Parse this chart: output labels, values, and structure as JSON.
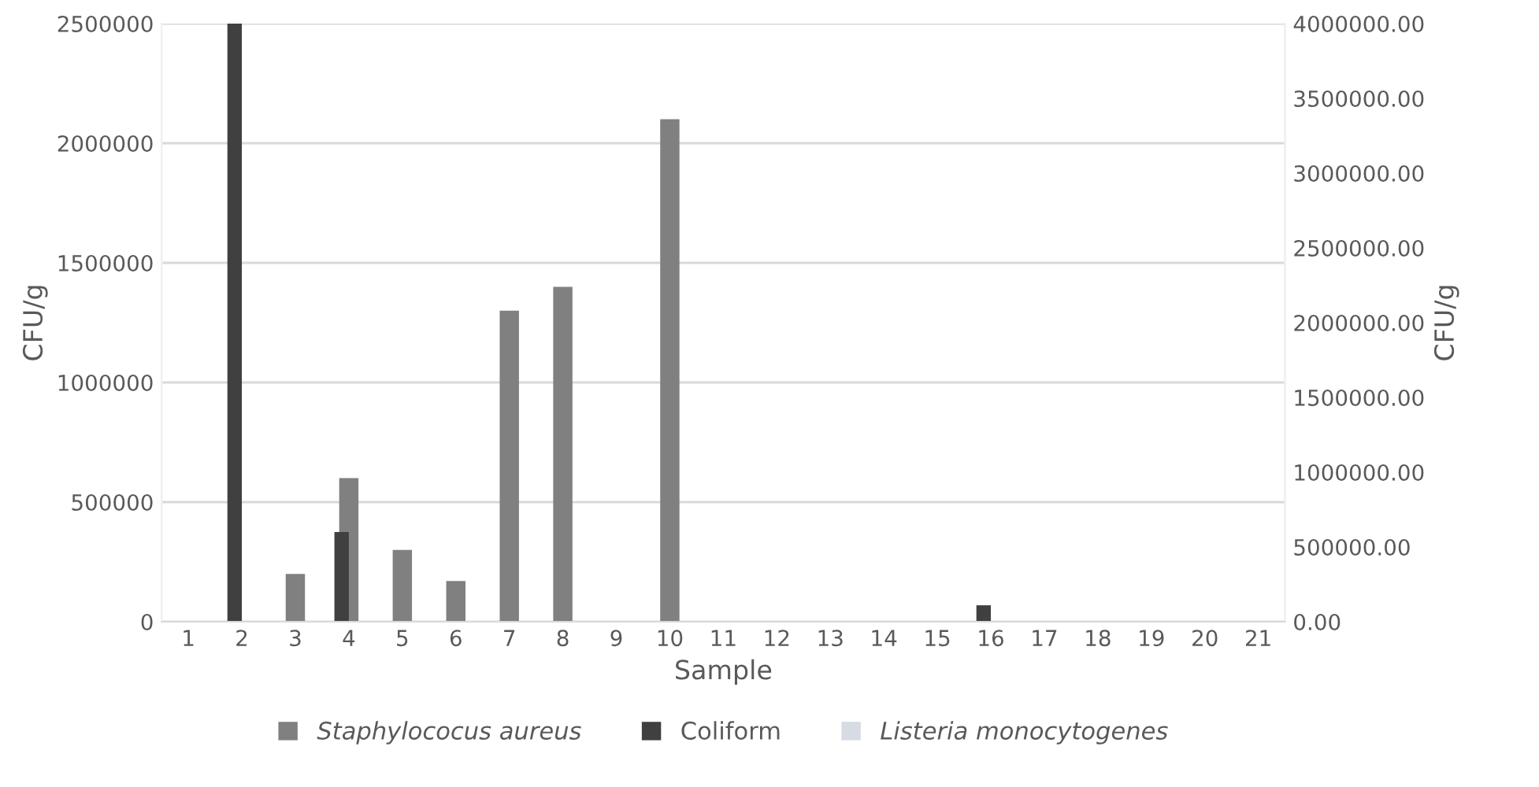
{
  "chart_data": {
    "type": "bar",
    "xlabel": "Sample",
    "ylabel": "CFU/g",
    "y2label": "CFU/g",
    "categories": [
      "1",
      "2",
      "3",
      "4",
      "5",
      "6",
      "7",
      "8",
      "9",
      "10",
      "11",
      "12",
      "13",
      "14",
      "15",
      "16",
      "17",
      "18",
      "19",
      "20",
      "21"
    ],
    "series": [
      {
        "name": "Staphylococus aureus",
        "color": "#808080",
        "values": [
          0,
          0,
          200000,
          600000,
          300000,
          170000,
          1300000,
          1400000,
          0,
          2100000,
          0,
          0,
          0,
          0,
          0,
          0,
          0,
          0,
          0,
          0,
          0
        ]
      },
      {
        "name": "Coliform",
        "color": "#404040",
        "axis": "y2",
        "values": [
          0,
          4000000,
          0,
          600000,
          0,
          0,
          0,
          0,
          0,
          0,
          0,
          0,
          0,
          0,
          0,
          110000,
          0,
          0,
          0,
          0,
          0
        ]
      },
      {
        "name": "Listeria monocytogenes",
        "color": "#d6dbe4",
        "axis": "y2",
        "values": [
          0,
          0,
          0,
          0,
          0,
          0,
          0,
          0,
          0,
          0,
          0,
          0,
          0,
          0,
          0,
          0,
          0,
          0,
          0,
          0,
          0
        ]
      }
    ],
    "ylim": [
      0,
      2500000
    ],
    "yticks": [
      0,
      500000,
      1000000,
      1500000,
      2000000,
      2500000
    ],
    "y2lim": [
      0,
      4000000
    ],
    "y2ticks": [
      {
        "value": 0,
        "label": "0.00"
      },
      {
        "value": 500000,
        "label": "500000.00"
      },
      {
        "value": 1000000,
        "label": "1000000.00"
      },
      {
        "value": 1500000,
        "label": "1500000.00"
      },
      {
        "value": 2000000,
        "label": "2000000.00"
      },
      {
        "value": 2500000,
        "label": "2500000.00"
      },
      {
        "value": 3000000,
        "label": "3000000.00"
      },
      {
        "value": 3500000,
        "label": "3500000.00"
      },
      {
        "value": 4000000,
        "label": "4000000.00"
      }
    ],
    "grid": "y",
    "legend": "bottom"
  }
}
